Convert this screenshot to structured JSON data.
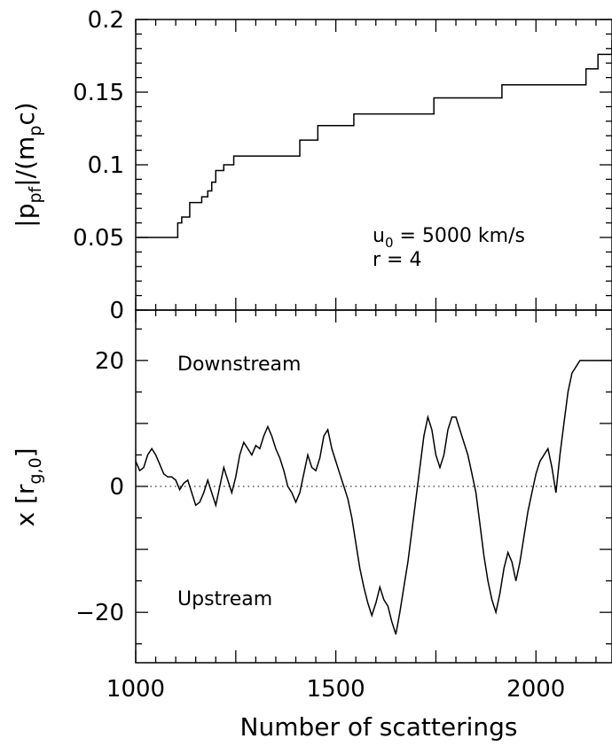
{
  "chart_data": [
    {
      "type": "line",
      "panel": "top",
      "step": true,
      "ylabel_base": "|p",
      "ylabel_sub1": "pf",
      "ylabel_mid": "|/(m",
      "ylabel_sub2": "p",
      "ylabel_end": "c)",
      "xlim": [
        1000,
        2190
      ],
      "ylim": [
        0,
        0.2
      ],
      "yticks": [
        0,
        0.05,
        0.1,
        0.15,
        0.2
      ],
      "ytick_labels": [
        "0",
        "0.05",
        "0.1",
        "0.15",
        "0.2"
      ],
      "annotations": {
        "u0_base": "u",
        "u0_sub": "0",
        "u0_rest": " = 5000 km/s",
        "r": "r = 4"
      },
      "series": [
        {
          "x": [
            1000,
            1105,
            1115,
            1135,
            1165,
            1180,
            1190,
            1200,
            1220,
            1245,
            1265,
            1410,
            1425,
            1455,
            1545,
            1745,
            1915,
            2125,
            2155,
            2190
          ],
          "y": [
            0.05,
            0.06,
            0.064,
            0.074,
            0.078,
            0.082,
            0.088,
            0.096,
            0.1,
            0.106,
            0.106,
            0.117,
            0.117,
            0.127,
            0.135,
            0.146,
            0.155,
            0.166,
            0.176,
            0.186
          ]
        }
      ]
    },
    {
      "type": "line",
      "panel": "bottom",
      "xlabel": "Number of scatterings",
      "ylabel_base": "x [r",
      "ylabel_sub": "g,0",
      "ylabel_end": "]",
      "xlim": [
        1000,
        2190
      ],
      "ylim": [
        -28,
        28
      ],
      "xticks": [
        1000,
        1500,
        2000
      ],
      "xtick_labels": [
        "1000",
        "1500",
        "2000"
      ],
      "yticks": [
        -20,
        0,
        20
      ],
      "ytick_labels": [
        "−20",
        "0",
        "20"
      ],
      "zero_line": "dotted",
      "annotations": {
        "downstream": "Downstream",
        "upstream": "Upstream"
      },
      "series": [
        {
          "x": [
            1000,
            1010,
            1020,
            1030,
            1040,
            1050,
            1060,
            1070,
            1080,
            1090,
            1100,
            1110,
            1120,
            1130,
            1140,
            1150,
            1160,
            1170,
            1180,
            1190,
            1200,
            1210,
            1220,
            1230,
            1240,
            1250,
            1260,
            1270,
            1280,
            1290,
            1300,
            1310,
            1320,
            1330,
            1340,
            1350,
            1360,
            1370,
            1380,
            1390,
            1400,
            1410,
            1420,
            1430,
            1440,
            1450,
            1460,
            1470,
            1480,
            1490,
            1500,
            1510,
            1520,
            1530,
            1540,
            1550,
            1560,
            1570,
            1580,
            1590,
            1600,
            1610,
            1620,
            1630,
            1640,
            1650,
            1660,
            1670,
            1680,
            1690,
            1700,
            1710,
            1720,
            1730,
            1740,
            1750,
            1760,
            1770,
            1780,
            1790,
            1800,
            1810,
            1820,
            1830,
            1840,
            1850,
            1860,
            1870,
            1880,
            1890,
            1900,
            1910,
            1920,
            1930,
            1940,
            1950,
            1960,
            1970,
            1980,
            1990,
            2000,
            2010,
            2020,
            2030,
            2040,
            2050,
            2060,
            2070,
            2080,
            2090,
            2100,
            2110,
            2120,
            2130,
            2140,
            2150,
            2160,
            2170,
            2180,
            2190
          ],
          "y": [
            4,
            2.5,
            3,
            5,
            6,
            5,
            3.5,
            2,
            1.5,
            1.5,
            1,
            -0.5,
            0.5,
            1,
            -1,
            -3,
            -2.5,
            -1,
            1,
            -1,
            -3,
            0,
            3,
            1,
            -1,
            1.5,
            5,
            7,
            6,
            5,
            6.5,
            6,
            8,
            9.5,
            8,
            6,
            4.5,
            2.5,
            0,
            -1,
            -2.5,
            -1,
            2,
            5,
            3,
            2.5,
            4.5,
            8,
            9,
            6,
            4,
            2,
            0,
            -2,
            -5,
            -9,
            -13,
            -16,
            -18.5,
            -20.5,
            -18.5,
            -16,
            -18,
            -19,
            -21.5,
            -23.5,
            -20,
            -16,
            -12,
            -7,
            -2,
            3,
            8,
            11,
            9,
            5,
            3,
            5,
            9,
            11,
            11,
            9,
            7,
            5,
            2,
            -1,
            -6,
            -11,
            -15,
            -18,
            -20,
            -17,
            -13,
            -10.5,
            -12,
            -15,
            -12,
            -8,
            -4,
            -1,
            2,
            4,
            5,
            6,
            3,
            -1,
            5,
            10,
            15,
            18,
            19,
            20,
            20,
            20,
            20,
            20,
            20,
            20,
            20,
            20
          ]
        }
      ]
    }
  ]
}
